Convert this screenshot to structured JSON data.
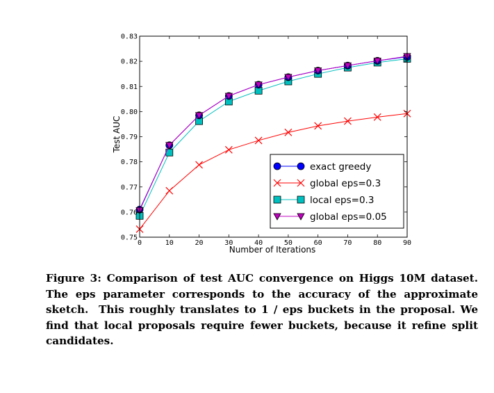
{
  "chart_data": {
    "type": "line",
    "title": "",
    "xlabel": "Number of Iterations",
    "ylabel": "Test AUC",
    "xlim": [
      0,
      90
    ],
    "ylim": [
      0.75,
      0.83
    ],
    "xticks": [
      "0",
      "10",
      "20",
      "30",
      "40",
      "50",
      "60",
      "70",
      "80",
      "90"
    ],
    "yticks": [
      "0.75",
      "0.76",
      "0.77",
      "0.78",
      "0.79",
      "0.80",
      "0.81",
      "0.82",
      "0.83"
    ],
    "grid": false,
    "legend_position": "lower-right",
    "x": [
      0,
      10,
      20,
      30,
      40,
      50,
      60,
      70,
      80,
      90
    ],
    "series": [
      {
        "name": "exact greedy",
        "marker": "circle",
        "color": "#0000ff",
        "values": [
          0.761,
          0.7866,
          0.7985,
          0.8062,
          0.8107,
          0.8137,
          0.8163,
          0.8183,
          0.8202,
          0.8218
        ]
      },
      {
        "name": "global eps=0.3",
        "marker": "x",
        "color": "#ff0000",
        "values": [
          0.7532,
          0.7685,
          0.7788,
          0.7848,
          0.7885,
          0.7917,
          0.7943,
          0.7962,
          0.7978,
          0.7992
        ]
      },
      {
        "name": "local eps=0.3",
        "marker": "square",
        "color": "#00bfbf",
        "values": [
          0.7585,
          0.7837,
          0.7962,
          0.804,
          0.8083,
          0.812,
          0.815,
          0.8175,
          0.8195,
          0.821
        ]
      },
      {
        "name": "global eps=0.05",
        "marker": "triangle-down",
        "color": "#bf00bf",
        "values": [
          0.7607,
          0.7866,
          0.7985,
          0.8062,
          0.8107,
          0.8137,
          0.8163,
          0.8183,
          0.8202,
          0.822
        ]
      }
    ]
  },
  "caption": {
    "lines": [
      "Figure 3: Comparison of test AUC convergence on",
      "Higgs 10M dataset. The eps parameter corresponds",
      "to the accuracy of the approximate sketch.  This",
      "roughly translates to 1 / eps buckets in the proposal.",
      "We find that local proposals require fewer buckets,",
      "because it refine split candidates."
    ]
  }
}
